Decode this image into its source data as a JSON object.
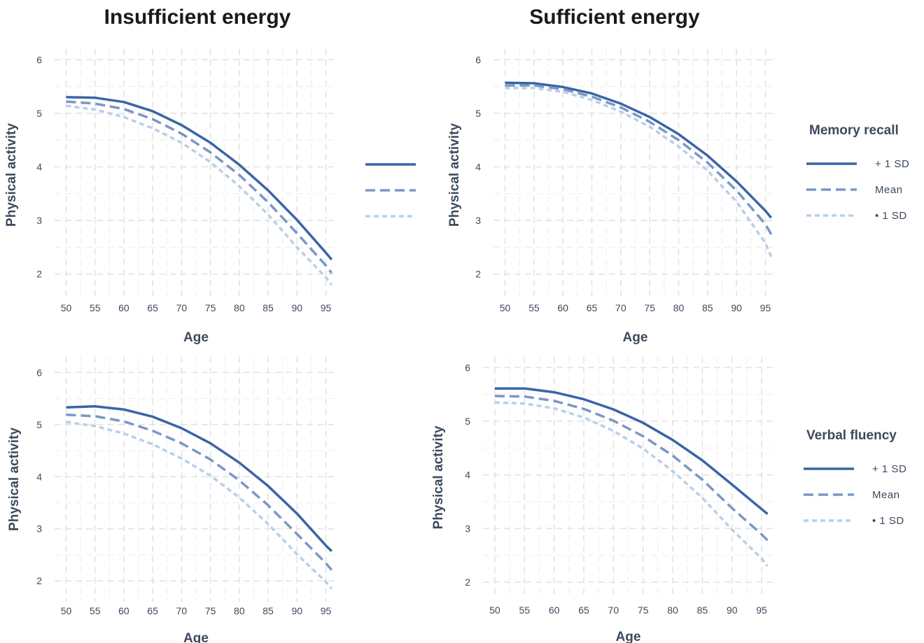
{
  "columns": {
    "left_title": "Insufficient energy",
    "right_title": "Sufficient energy"
  },
  "legends": {
    "memory": {
      "title": "Memory recall",
      "items": [
        {
          "label": "+ 1 SD",
          "style": "solid",
          "color": "#3a64a6"
        },
        {
          "label": "Mean",
          "style": "dashed",
          "color": "#7a97c6"
        },
        {
          "label": "• 1 SD",
          "style": "dotted",
          "color": "#b9cfe8"
        }
      ]
    },
    "verbal": {
      "title": "Verbal fluency",
      "items": [
        {
          "label": "+ 1 SD",
          "style": "solid",
          "color": "#3a64a6"
        },
        {
          "label": "Mean",
          "style": "dashed",
          "color": "#7a97c6"
        },
        {
          "label": "• 1 SD",
          "style": "dotted",
          "color": "#b9cfe8"
        }
      ]
    }
  },
  "chart_data": [
    {
      "type": "line",
      "title": "Insufficient energy",
      "xlabel": "Age",
      "ylabel": "Physical activity",
      "xlim": [
        48,
        97
      ],
      "ylim": [
        1.5,
        6.2
      ],
      "xticks": [
        50,
        55,
        60,
        65,
        70,
        75,
        80,
        85,
        90,
        95
      ],
      "yticks": [
        2,
        3,
        4,
        5,
        6
      ],
      "x": [
        50,
        55,
        60,
        65,
        70,
        75,
        80,
        85,
        90,
        95,
        96
      ],
      "series": [
        {
          "name": "+ 1 SD",
          "values": [
            5.3,
            5.29,
            5.21,
            5.04,
            4.78,
            4.45,
            4.04,
            3.56,
            3.01,
            2.4,
            2.27
          ]
        },
        {
          "name": "Mean",
          "values": [
            5.22,
            5.18,
            5.08,
            4.89,
            4.62,
            4.27,
            3.85,
            3.34,
            2.76,
            2.16,
            2.02
          ]
        },
        {
          "name": "• 1 SD",
          "values": [
            5.14,
            5.07,
            4.93,
            4.72,
            4.45,
            4.09,
            3.64,
            3.11,
            2.5,
            1.94,
            1.8
          ]
        }
      ]
    },
    {
      "type": "line",
      "title": "Sufficient energy",
      "xlabel": "Age",
      "ylabel": "Physical activity",
      "xlim": [
        48,
        97
      ],
      "ylim": [
        1.5,
        6.2
      ],
      "xticks": [
        50,
        55,
        60,
        65,
        70,
        75,
        80,
        85,
        90,
        95
      ],
      "yticks": [
        2,
        3,
        4,
        5,
        6
      ],
      "x": [
        50,
        55,
        60,
        65,
        70,
        75,
        80,
        85,
        90,
        95,
        96
      ],
      "series": [
        {
          "name": "+ 1 SD",
          "values": [
            5.57,
            5.56,
            5.49,
            5.37,
            5.18,
            4.93,
            4.61,
            4.21,
            3.73,
            3.18,
            3.05
          ]
        },
        {
          "name": "Mean",
          "values": [
            5.52,
            5.52,
            5.45,
            5.31,
            5.11,
            4.84,
            4.5,
            4.08,
            3.56,
            2.93,
            2.74
          ]
        },
        {
          "name": "• 1 SD",
          "values": [
            5.47,
            5.47,
            5.4,
            5.25,
            5.03,
            4.75,
            4.38,
            3.93,
            3.35,
            2.58,
            2.32
          ]
        }
      ]
    },
    {
      "type": "line",
      "title": "",
      "xlabel": "Age",
      "ylabel": "Physical activity",
      "xlim": [
        48,
        97
      ],
      "ylim": [
        1.6,
        6.3
      ],
      "xticks": [
        50,
        55,
        60,
        65,
        70,
        75,
        80,
        85,
        90,
        95
      ],
      "yticks": [
        2,
        3,
        4,
        5,
        6
      ],
      "x": [
        50,
        55,
        60,
        65,
        70,
        75,
        80,
        85,
        90,
        95,
        96
      ],
      "series": [
        {
          "name": "+ 1 SD",
          "values": [
            5.33,
            5.35,
            5.29,
            5.15,
            4.93,
            4.64,
            4.27,
            3.82,
            3.29,
            2.68,
            2.57
          ]
        },
        {
          "name": "Mean",
          "values": [
            5.19,
            5.16,
            5.06,
            4.88,
            4.64,
            4.33,
            3.93,
            3.45,
            2.9,
            2.34,
            2.21
          ]
        },
        {
          "name": "• 1 SD",
          "values": [
            5.05,
            4.97,
            4.83,
            4.62,
            4.35,
            4.02,
            3.6,
            3.09,
            2.51,
            1.98,
            1.85
          ]
        }
      ]
    },
    {
      "type": "line",
      "title": "",
      "xlabel": "Age",
      "ylabel": "Physical activity",
      "xlim": [
        48,
        97
      ],
      "ylim": [
        1.7,
        6.2
      ],
      "xticks": [
        50,
        55,
        60,
        65,
        70,
        75,
        80,
        85,
        90,
        95
      ],
      "yticks": [
        2,
        3,
        4,
        5,
        6
      ],
      "x": [
        50,
        55,
        60,
        65,
        70,
        75,
        80,
        85,
        90,
        95,
        96
      ],
      "series": [
        {
          "name": "+ 1 SD",
          "values": [
            5.61,
            5.61,
            5.54,
            5.41,
            5.22,
            4.97,
            4.65,
            4.27,
            3.82,
            3.36,
            3.27
          ]
        },
        {
          "name": "Mean",
          "values": [
            5.47,
            5.46,
            5.38,
            5.23,
            5.01,
            4.72,
            4.36,
            3.91,
            3.38,
            2.89,
            2.78
          ]
        },
        {
          "name": "• 1 SD",
          "values": [
            5.35,
            5.33,
            5.24,
            5.07,
            4.82,
            4.49,
            4.07,
            3.57,
            2.98,
            2.44,
            2.3
          ]
        }
      ]
    }
  ]
}
